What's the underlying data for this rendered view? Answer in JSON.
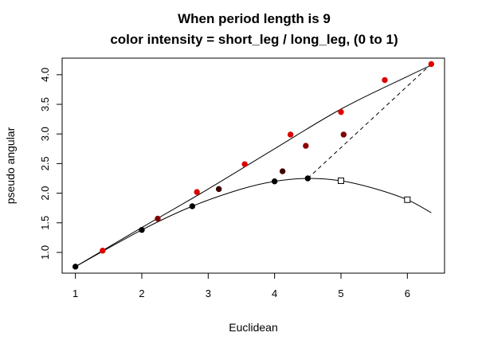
{
  "chart_data": {
    "type": "scatter",
    "title_line1": "When period length is 9",
    "title_line2": "color intensity = short_leg / long_leg, (0 to 1)",
    "xlabel": "Euclidean",
    "ylabel": "pseudo angular",
    "xlim": [
      0.8,
      6.56
    ],
    "ylim": [
      0.65,
      4.28
    ],
    "xticks": [
      {
        "value": 1,
        "label": "1"
      },
      {
        "value": 2,
        "label": "2"
      },
      {
        "value": 3,
        "label": "3"
      },
      {
        "value": 4,
        "label": "4"
      },
      {
        "value": 5,
        "label": "5"
      },
      {
        "value": 6,
        "label": "6"
      }
    ],
    "yticks": [
      {
        "value": 1.0,
        "label": "1.0"
      },
      {
        "value": 1.5,
        "label": "1.5"
      },
      {
        "value": 2.0,
        "label": "2.0"
      },
      {
        "value": 2.5,
        "label": "2.5"
      },
      {
        "value": 3.0,
        "label": "3.0"
      },
      {
        "value": 3.5,
        "label": "3.5"
      },
      {
        "value": 4.0,
        "label": "4.0"
      }
    ],
    "points": [
      {
        "x": 1.0,
        "y": 0.76,
        "color": "#000000"
      },
      {
        "x": 1.41,
        "y": 1.03,
        "color": "#dd0000"
      },
      {
        "x": 2.0,
        "y": 1.38,
        "color": "#000000"
      },
      {
        "x": 2.24,
        "y": 1.57,
        "color": "#800000"
      },
      {
        "x": 2.76,
        "y": 1.78,
        "color": "#000000"
      },
      {
        "x": 2.83,
        "y": 2.02,
        "color": "#dd0000"
      },
      {
        "x": 3.16,
        "y": 2.07,
        "color": "#3a0000"
      },
      {
        "x": 3.55,
        "y": 2.49,
        "color": "#dd0000"
      },
      {
        "x": 4.0,
        "y": 2.2,
        "color": "#000000"
      },
      {
        "x": 4.12,
        "y": 2.37,
        "color": "#400000"
      },
      {
        "x": 4.24,
        "y": 2.99,
        "color": "#dd0000"
      },
      {
        "x": 4.47,
        "y": 2.8,
        "color": "#900000"
      },
      {
        "x": 4.5,
        "y": 2.25,
        "color": "#000000"
      },
      {
        "x": 5.0,
        "y": 3.37,
        "color": "#dd0000"
      },
      {
        "x": 5.04,
        "y": 2.99,
        "color": "#800000"
      },
      {
        "x": 5.66,
        "y": 3.91,
        "color": "#dd0000"
      },
      {
        "x": 6.36,
        "y": 4.18,
        "color": "#dd0000"
      }
    ],
    "open_squares": [
      {
        "x": 5.0,
        "y": 2.21
      },
      {
        "x": 6.0,
        "y": 1.89
      }
    ],
    "upper_curve": {
      "x_start": 1.0,
      "x_end": 6.36,
      "a": 0.76,
      "b": 0.638,
      "c": 0.0
    },
    "upper_curve_points": [
      {
        "x": 1.0,
        "y": 0.76
      },
      {
        "x": 2.0,
        "y": 1.42
      },
      {
        "x": 3.0,
        "y": 2.07
      },
      {
        "x": 4.0,
        "y": 2.75
      },
      {
        "x": 5.0,
        "y": 3.42
      },
      {
        "x": 6.0,
        "y": 3.97
      },
      {
        "x": 6.36,
        "y": 4.16
      }
    ],
    "lower_curve_points": [
      {
        "x": 1.0,
        "y": 0.76
      },
      {
        "x": 2.0,
        "y": 1.38
      },
      {
        "x": 2.76,
        "y": 1.78
      },
      {
        "x": 3.5,
        "y": 2.07
      },
      {
        "x": 4.0,
        "y": 2.2
      },
      {
        "x": 4.5,
        "y": 2.25
      },
      {
        "x": 5.0,
        "y": 2.21
      },
      {
        "x": 5.5,
        "y": 2.08
      },
      {
        "x": 6.0,
        "y": 1.89
      },
      {
        "x": 6.36,
        "y": 1.67
      }
    ],
    "dashed_line": [
      {
        "x": 4.5,
        "y": 2.25
      },
      {
        "x": 6.36,
        "y": 4.18
      }
    ]
  }
}
